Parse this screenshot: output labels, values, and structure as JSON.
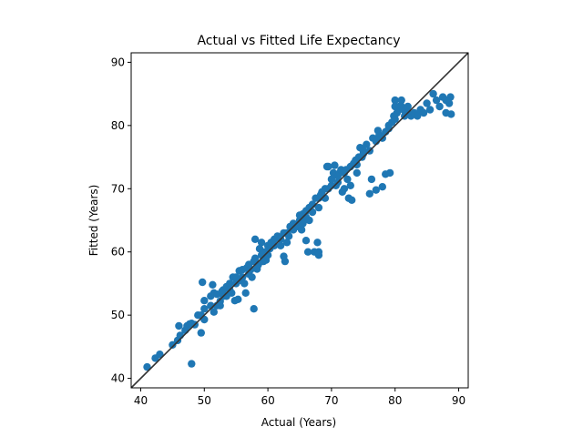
{
  "chart_data": {
    "type": "scatter",
    "title": "Actual vs Fitted Life Expectancy",
    "xlabel": "Actual (Years)",
    "ylabel": "Fitted (Years)",
    "xlim": [
      38.5,
      91.5
    ],
    "ylim": [
      38.5,
      91.5
    ],
    "xticks": [
      40,
      50,
      60,
      70,
      80,
      90
    ],
    "yticks": [
      40,
      50,
      60,
      70,
      80,
      90
    ],
    "grid": false,
    "reference_line": "y = x",
    "marker_color": "#1f77b4",
    "line_color": "#333333",
    "points": [
      [
        41,
        41.8
      ],
      [
        42.3,
        43.2
      ],
      [
        43,
        43.8
      ],
      [
        45,
        45.3
      ],
      [
        45.8,
        46
      ],
      [
        46.2,
        46.8
      ],
      [
        46,
        48.3
      ],
      [
        47,
        47.6
      ],
      [
        47.3,
        48.3
      ],
      [
        47.7,
        48.6
      ],
      [
        48,
        48.7
      ],
      [
        48,
        42.3
      ],
      [
        48.5,
        48.5
      ],
      [
        49,
        50
      ],
      [
        49.5,
        50
      ],
      [
        49.5,
        47.2
      ],
      [
        49.7,
        55.2
      ],
      [
        50,
        49.3
      ],
      [
        50,
        52.3
      ],
      [
        50,
        51
      ],
      [
        51,
        51.5
      ],
      [
        51,
        53
      ],
      [
        51.3,
        54.8
      ],
      [
        51.5,
        50.5
      ],
      [
        51.5,
        53.5
      ],
      [
        52,
        53.3
      ],
      [
        52,
        51.5
      ],
      [
        52.5,
        52.2
      ],
      [
        52.5,
        51.5
      ],
      [
        52.8,
        53.8
      ],
      [
        53,
        53
      ],
      [
        53,
        54
      ],
      [
        53.5,
        54.5
      ],
      [
        53.5,
        53
      ],
      [
        54,
        55
      ],
      [
        54,
        54
      ],
      [
        54.3,
        53.5
      ],
      [
        54.5,
        56
      ],
      [
        54.8,
        52.3
      ],
      [
        55,
        55
      ],
      [
        55,
        56
      ],
      [
        55.3,
        52.5
      ],
      [
        55.5,
        57
      ],
      [
        55.5,
        55.5
      ],
      [
        56,
        56
      ],
      [
        56,
        57.2
      ],
      [
        56.3,
        55
      ],
      [
        56.5,
        53.5
      ],
      [
        56.7,
        57.5
      ],
      [
        57,
        56.5
      ],
      [
        57,
        58
      ],
      [
        57.3,
        57.2
      ],
      [
        57.5,
        56
      ],
      [
        57.8,
        51
      ],
      [
        57.8,
        58.5
      ],
      [
        58,
        62
      ],
      [
        58,
        59
      ],
      [
        58.3,
        57.3
      ],
      [
        58.5,
        58
      ],
      [
        58.7,
        60.5
      ],
      [
        59,
        59.5
      ],
      [
        59,
        61.5
      ],
      [
        59.3,
        58.5
      ],
      [
        59.5,
        60
      ],
      [
        59.7,
        58.7
      ],
      [
        60,
        61
      ],
      [
        60,
        59.5
      ],
      [
        60.3,
        60.5
      ],
      [
        60.5,
        61.5
      ],
      [
        61,
        62
      ],
      [
        61,
        61
      ],
      [
        61.5,
        62.5
      ],
      [
        62,
        62
      ],
      [
        62,
        61
      ],
      [
        62.5,
        63
      ],
      [
        62.5,
        59.3
      ],
      [
        62.7,
        58.5
      ],
      [
        63,
        63
      ],
      [
        63,
        61.5
      ],
      [
        63.3,
        62.5
      ],
      [
        63.5,
        64
      ],
      [
        64,
        63.5
      ],
      [
        64,
        64.5
      ],
      [
        64.5,
        64
      ],
      [
        65,
        65
      ],
      [
        65,
        65.8
      ],
      [
        65.3,
        63.5
      ],
      [
        65.5,
        64.5
      ],
      [
        65.5,
        66
      ],
      [
        66,
        65.5
      ],
      [
        66,
        66.5
      ],
      [
        66,
        61.8
      ],
      [
        66.3,
        60
      ],
      [
        66.5,
        67
      ],
      [
        66.5,
        65
      ],
      [
        67,
        66.3
      ],
      [
        67,
        67.5
      ],
      [
        67.3,
        60
      ],
      [
        67.5,
        68.5
      ],
      [
        67.8,
        61.5
      ],
      [
        68,
        67
      ],
      [
        68,
        68.5
      ],
      [
        68,
        59.5
      ],
      [
        68,
        60
      ],
      [
        68.3,
        69
      ],
      [
        68.5,
        69.5
      ],
      [
        69,
        68.5
      ],
      [
        69,
        70
      ],
      [
        69.3,
        73.5
      ],
      [
        69.5,
        73.5
      ],
      [
        69.5,
        70
      ],
      [
        70,
        70.5
      ],
      [
        70,
        71.5
      ],
      [
        70.3,
        72.5
      ],
      [
        70.5,
        73.7
      ],
      [
        70.7,
        70.5
      ],
      [
        71,
        71
      ],
      [
        71,
        72
      ],
      [
        71.3,
        72.5
      ],
      [
        71.5,
        73
      ],
      [
        71.7,
        69.5
      ],
      [
        72,
        72.5
      ],
      [
        72,
        70
      ],
      [
        72.3,
        73
      ],
      [
        72.5,
        71.5
      ],
      [
        72.7,
        68.5
      ],
      [
        73,
        73.5
      ],
      [
        73,
        70.5
      ],
      [
        73.2,
        68.2
      ],
      [
        73.5,
        74
      ],
      [
        73.8,
        74.5
      ],
      [
        74,
        73.8
      ],
      [
        74,
        72.5
      ],
      [
        74.3,
        75
      ],
      [
        74.5,
        76.5
      ],
      [
        74.8,
        75
      ],
      [
        75,
        75.5
      ],
      [
        75,
        76
      ],
      [
        75.5,
        77
      ],
      [
        76,
        76
      ],
      [
        76,
        69.2
      ],
      [
        76.3,
        71.5
      ],
      [
        76.5,
        78
      ],
      [
        77,
        77.5
      ],
      [
        77,
        69.8
      ],
      [
        77.3,
        79.2
      ],
      [
        77.5,
        78.5
      ],
      [
        78,
        70.3
      ],
      [
        78,
        78
      ],
      [
        78.5,
        72.3
      ],
      [
        78.5,
        79
      ],
      [
        79,
        79.5
      ],
      [
        79,
        80
      ],
      [
        79.2,
        72.5
      ],
      [
        79.5,
        80.5
      ],
      [
        79.8,
        81.5
      ],
      [
        80,
        81
      ],
      [
        80,
        84
      ],
      [
        80,
        83
      ],
      [
        80.3,
        82
      ],
      [
        80.5,
        82.5
      ],
      [
        80.7,
        83
      ],
      [
        81,
        84
      ],
      [
        81,
        83
      ],
      [
        81.3,
        82.5
      ],
      [
        81.5,
        81.5
      ],
      [
        82,
        83
      ],
      [
        82,
        82
      ],
      [
        82.5,
        81.5
      ],
      [
        83,
        82
      ],
      [
        83.5,
        81.5
      ],
      [
        84,
        82.5
      ],
      [
        84.5,
        82
      ],
      [
        85,
        83.5
      ],
      [
        85.5,
        82.5
      ],
      [
        86,
        85
      ],
      [
        86.5,
        84
      ],
      [
        87,
        83
      ],
      [
        87.5,
        84.5
      ],
      [
        88,
        82
      ],
      [
        88.5,
        83.5
      ],
      [
        88.8,
        81.8
      ],
      [
        88.7,
        84.5
      ],
      [
        88,
        84
      ]
    ]
  }
}
